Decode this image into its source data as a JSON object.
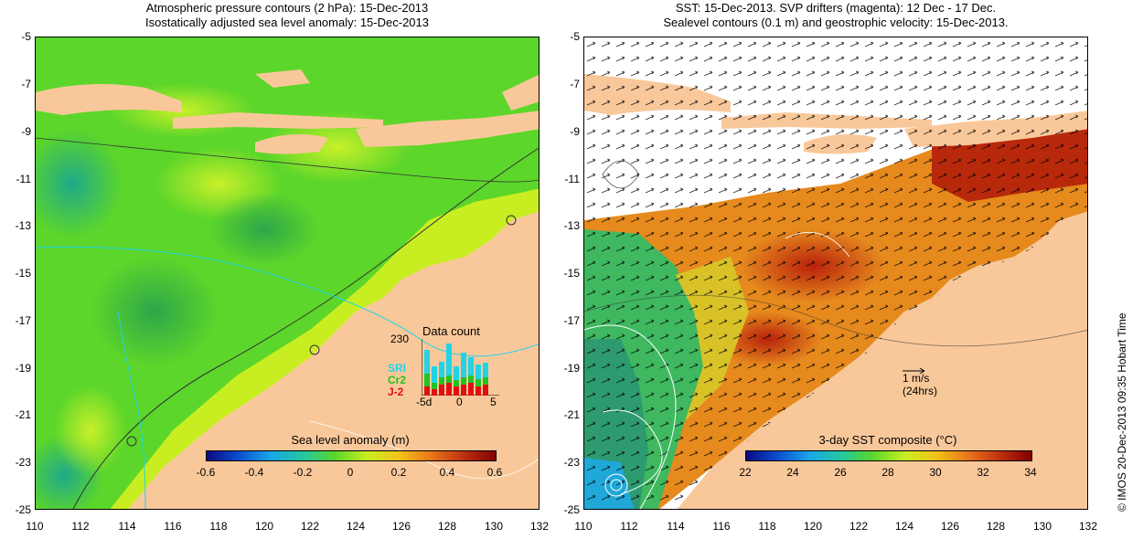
{
  "left_panel": {
    "title_line1": "Atmospheric pressure contours (2 hPa): 15-Dec-2013",
    "title_line2": "Isostatically adjusted sea level anomaly: 15-Dec-2013",
    "colorbar_label": "Sea level anomaly (m)",
    "colorbar_ticks": [
      "-0.6",
      "-0.4",
      "-0.2",
      "0",
      "0.2",
      "0.4",
      "0.6"
    ],
    "inset": {
      "title": "Data count",
      "ymax_label": "230",
      "legend": [
        "SRl",
        "Cr2",
        "J-2"
      ],
      "legend_colors": [
        "#22d3e8",
        "#22c422",
        "#e01010"
      ],
      "xticks": [
        "-5d",
        "0",
        "5"
      ]
    }
  },
  "right_panel": {
    "title_line1": "SST: 15-Dec-2013. SVP drifters (magenta): 12 Dec - 17 Dec.",
    "title_line2": "Sealevel contours (0.1 m) and geostrophic velocity: 15-Dec-2013.",
    "colorbar_label": "3-day SST composite (°C)",
    "colorbar_ticks": [
      "22",
      "24",
      "26",
      "28",
      "30",
      "32",
      "34"
    ],
    "scale_arrow_label": "1 m/s",
    "scale_arrow_sublabel": "(24hrs)"
  },
  "axes": {
    "lat_ticks": [
      "-5",
      "-7",
      "-9",
      "-11",
      "-13",
      "-15",
      "-17",
      "-19",
      "-21",
      "-23",
      "-25"
    ],
    "lon_ticks": [
      "110",
      "112",
      "114",
      "116",
      "118",
      "120",
      "122",
      "124",
      "126",
      "128",
      "130",
      "132"
    ]
  },
  "credit": "© IMOS 20-Dec-2013 09:35 Hobart Time",
  "colors": {
    "land": "#f9c89a",
    "ocean_sla": "#5cd62a",
    "sst_warm": "#e68a1e",
    "sst_hot": "#c0300c",
    "sst_cool": "#3fb860"
  }
}
